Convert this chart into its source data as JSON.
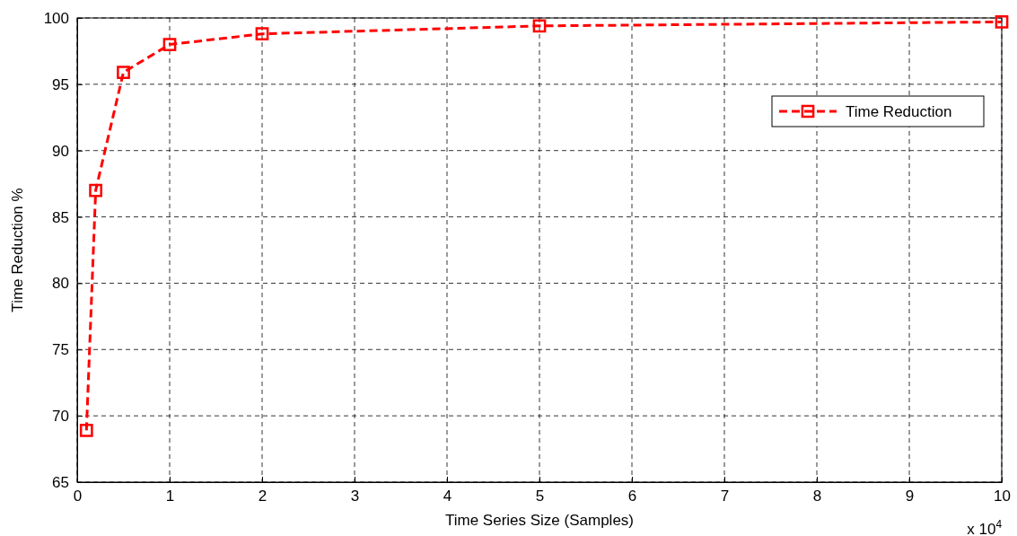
{
  "chart_data": {
    "type": "line",
    "xlabel": "Time Series Size (Samples)",
    "ylabel": "Time Reduction %",
    "annotations": [
      "x 10$^{4}$"
    ],
    "x": [
      0.1,
      0.2,
      0.5,
      1,
      2,
      5,
      10
    ],
    "series": [
      {
        "name": "Time Reduction",
        "color": "#ff0000",
        "values": [
          68.9,
          87.0,
          95.9,
          98.0,
          98.8,
          99.4,
          99.7
        ]
      }
    ],
    "xlim": [
      0,
      10
    ],
    "xticks": [
      0,
      1,
      2,
      3,
      4,
      5,
      6,
      7,
      8,
      9,
      10
    ],
    "ylim": [
      65,
      100
    ],
    "yticks": [
      65,
      70,
      75,
      80,
      85,
      90,
      95,
      100
    ],
    "grid": true,
    "legend": "top right",
    "marker": "square",
    "line_style": "dashed"
  }
}
